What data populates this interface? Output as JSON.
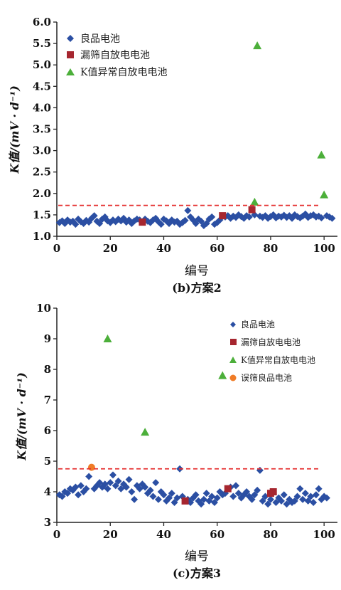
{
  "chart_data": [
    {
      "type": "scatter",
      "xlabel": "编号",
      "ylabel": "K值/(mV · d⁻¹)",
      "caption": "(b)方案2",
      "xlim": [
        0,
        105
      ],
      "ylim": [
        1.0,
        6.0
      ],
      "x_ticks": [
        "0",
        "20",
        "40",
        "60",
        "80",
        "100"
      ],
      "y_ticks": [
        "1.0",
        "1.5",
        "2.0",
        "2.5",
        "3.0",
        "3.5",
        "4.0",
        "4.5",
        "5.0",
        "5.5",
        "6.0"
      ],
      "legend_position": "top-left",
      "threshold": 1.72,
      "series": [
        {
          "name": "良品电池",
          "marker": "diamond",
          "color": "#2b4fa3",
          "x": [
            1,
            2,
            3,
            4,
            5,
            6,
            7,
            8,
            9,
            10,
            11,
            12,
            13,
            14,
            15,
            16,
            17,
            18,
            19,
            20,
            21,
            22,
            23,
            24,
            25,
            26,
            27,
            28,
            29,
            30,
            31,
            33,
            34,
            35,
            36,
            37,
            38,
            39,
            40,
            41,
            42,
            43,
            44,
            45,
            46,
            47,
            48,
            49,
            50,
            51,
            52,
            53,
            54,
            55,
            56,
            57,
            58,
            59,
            60,
            61,
            63,
            64,
            65,
            66,
            67,
            68,
            69,
            70,
            71,
            72,
            74,
            76,
            77,
            78,
            79,
            80,
            81,
            82,
            83,
            84,
            85,
            86,
            87,
            88,
            89,
            90,
            91,
            92,
            93,
            94,
            95,
            96,
            97,
            98,
            99,
            101,
            102,
            103
          ],
          "y": [
            1.32,
            1.36,
            1.3,
            1.38,
            1.33,
            1.35,
            1.28,
            1.4,
            1.34,
            1.3,
            1.37,
            1.33,
            1.42,
            1.48,
            1.35,
            1.3,
            1.4,
            1.45,
            1.36,
            1.32,
            1.38,
            1.34,
            1.4,
            1.36,
            1.42,
            1.33,
            1.38,
            1.3,
            1.36,
            1.4,
            1.38,
            1.4,
            1.35,
            1.32,
            1.38,
            1.42,
            1.34,
            1.28,
            1.4,
            1.36,
            1.3,
            1.38,
            1.33,
            1.35,
            1.28,
            1.32,
            1.37,
            1.6,
            1.45,
            1.38,
            1.3,
            1.4,
            1.35,
            1.25,
            1.3,
            1.4,
            1.45,
            1.28,
            1.32,
            1.38,
            1.45,
            1.48,
            1.42,
            1.47,
            1.44,
            1.5,
            1.46,
            1.42,
            1.48,
            1.45,
            1.5,
            1.47,
            1.44,
            1.48,
            1.42,
            1.46,
            1.5,
            1.43,
            1.47,
            1.45,
            1.49,
            1.44,
            1.48,
            1.42,
            1.5,
            1.46,
            1.43,
            1.47,
            1.52,
            1.44,
            1.48,
            1.5,
            1.45,
            1.47,
            1.43,
            1.48,
            1.45,
            1.42
          ]
        },
        {
          "name": "漏筛自放电电池",
          "marker": "square",
          "color": "#a6262f",
          "x": [
            32,
            62,
            73
          ],
          "y": [
            1.33,
            1.48,
            1.62
          ]
        },
        {
          "name": "K值异常自放电电池",
          "marker": "triangle",
          "color": "#4caf3a",
          "x": [
            74,
            75,
            99,
            100
          ],
          "y": [
            1.8,
            5.45,
            2.9,
            1.97
          ]
        }
      ]
    },
    {
      "type": "scatter",
      "xlabel": "编号",
      "ylabel": "K值/(mV · d⁻¹)",
      "caption": "(c)方案3",
      "xlim": [
        0,
        105
      ],
      "ylim": [
        3,
        10
      ],
      "x_ticks": [
        "0",
        "20",
        "40",
        "60",
        "80",
        "100"
      ],
      "y_ticks": [
        "3",
        "4",
        "5",
        "6",
        "7",
        "8",
        "9",
        "10"
      ],
      "legend_position": "top-right",
      "threshold": 4.75,
      "series": [
        {
          "name": "良品电池",
          "marker": "diamond",
          "color": "#2b4fa3",
          "x": [
            1,
            2,
            3,
            4,
            5,
            6,
            7,
            8,
            9,
            10,
            11,
            12,
            14,
            15,
            16,
            17,
            18,
            19,
            20,
            21,
            22,
            23,
            24,
            25,
            26,
            27,
            28,
            29,
            30,
            31,
            32,
            33,
            34,
            35,
            36,
            37,
            38,
            39,
            40,
            41,
            42,
            43,
            44,
            45,
            46,
            47,
            49,
            50,
            51,
            52,
            53,
            54,
            55,
            56,
            57,
            58,
            59,
            60,
            61,
            62,
            63,
            65,
            66,
            67,
            68,
            69,
            70,
            71,
            72,
            73,
            74,
            75,
            76,
            77,
            78,
            79,
            80,
            82,
            83,
            84,
            85,
            86,
            87,
            88,
            89,
            90,
            91,
            92,
            93,
            94,
            95,
            96,
            97,
            98,
            99,
            100,
            101
          ],
          "y": [
            3.9,
            3.85,
            4.0,
            3.95,
            4.1,
            4.05,
            4.15,
            3.9,
            4.2,
            4.0,
            4.1,
            4.5,
            4.1,
            4.2,
            4.3,
            4.15,
            4.25,
            4.1,
            4.3,
            4.55,
            4.2,
            4.35,
            4.1,
            4.25,
            4.15,
            4.4,
            4.0,
            3.75,
            4.2,
            4.1,
            4.25,
            4.15,
            3.95,
            4.05,
            3.85,
            4.3,
            3.75,
            4.0,
            3.9,
            3.7,
            3.8,
            3.95,
            3.65,
            3.8,
            4.75,
            3.85,
            3.75,
            3.65,
            3.8,
            3.9,
            3.7,
            3.6,
            3.75,
            3.95,
            3.7,
            3.85,
            3.65,
            3.8,
            4.0,
            3.9,
            3.95,
            4.15,
            3.85,
            4.2,
            3.95,
            3.8,
            3.9,
            4.0,
            3.85,
            3.75,
            3.9,
            4.05,
            4.7,
            3.7,
            3.85,
            3.6,
            3.75,
            3.65,
            3.8,
            3.7,
            3.9,
            3.6,
            3.75,
            3.65,
            3.7,
            3.85,
            4.1,
            3.75,
            3.95,
            3.7,
            3.85,
            3.65,
            3.9,
            4.1,
            3.75,
            3.85,
            3.8
          ]
        },
        {
          "name": "漏筛自放电电池",
          "marker": "square",
          "color": "#a6262f",
          "x": [
            48,
            64,
            80,
            81
          ],
          "y": [
            3.7,
            4.1,
            3.95,
            4.0
          ]
        },
        {
          "name": "K值异常自放电电池",
          "marker": "triangle",
          "color": "#4caf3a",
          "x": [
            19,
            33,
            62
          ],
          "y": [
            9.0,
            5.95,
            7.8
          ]
        },
        {
          "name": "误筛良品电池",
          "marker": "circle",
          "color": "#f07c27",
          "x": [
            13
          ],
          "y": [
            4.8
          ]
        }
      ]
    }
  ]
}
